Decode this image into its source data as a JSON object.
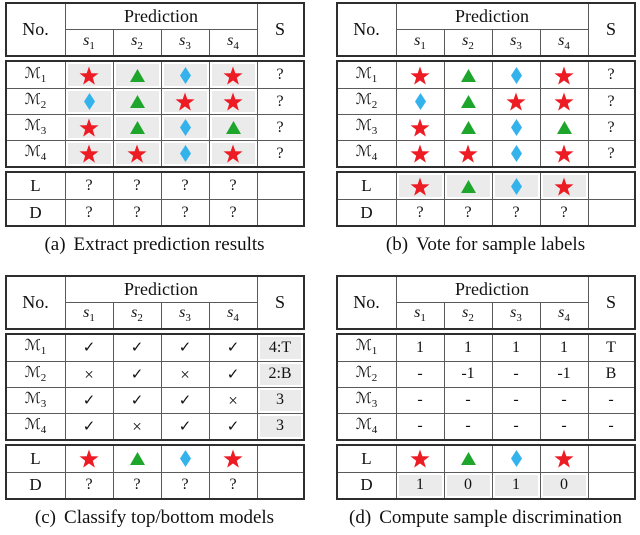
{
  "figure": {
    "colors": {
      "red": "#ed1c24",
      "green": "#1ea62c",
      "blue": "#33b2ec",
      "shade": "#ebebeb",
      "border_outer": "#2e2e2e",
      "border_inner": "#5a5a5a",
      "text": "#111111"
    },
    "header": {
      "no": "No.",
      "prediction": "Prediction",
      "s": "S",
      "samples": [
        {
          "base": "s",
          "sub": "1"
        },
        {
          "base": "s",
          "sub": "2"
        },
        {
          "base": "s",
          "sub": "3"
        },
        {
          "base": "s",
          "sub": "4"
        }
      ]
    },
    "model_glyph": "ℳ",
    "panels": [
      {
        "key": "a",
        "caption": {
          "label": "(a)",
          "text": "Extract prediction results"
        },
        "model_rows": [
          {
            "sub": "1",
            "cells": [
              "star",
              "triangle",
              "diamond",
              "star"
            ],
            "cells_gray": true,
            "s": "?",
            "s_gray": false
          },
          {
            "sub": "2",
            "cells": [
              "diamond",
              "triangle",
              "star",
              "star"
            ],
            "cells_gray": true,
            "s": "?",
            "s_gray": false
          },
          {
            "sub": "3",
            "cells": [
              "star",
              "triangle",
              "diamond",
              "triangle"
            ],
            "cells_gray": true,
            "s": "?",
            "s_gray": false
          },
          {
            "sub": "4",
            "cells": [
              "star",
              "star",
              "diamond",
              "star"
            ],
            "cells_gray": true,
            "s": "?",
            "s_gray": false
          }
        ],
        "bottom_rows": [
          {
            "label": "L",
            "cells": [
              "?",
              "?",
              "?",
              "?"
            ],
            "cells_gray": false,
            "s": ""
          },
          {
            "label": "D",
            "cells": [
              "?",
              "?",
              "?",
              "?"
            ],
            "cells_gray": false,
            "s": ""
          }
        ]
      },
      {
        "key": "b",
        "caption": {
          "label": "(b)",
          "text": "Vote for sample labels"
        },
        "model_rows": [
          {
            "sub": "1",
            "cells": [
              "star",
              "triangle",
              "diamond",
              "star"
            ],
            "cells_gray": false,
            "s": "?",
            "s_gray": false
          },
          {
            "sub": "2",
            "cells": [
              "diamond",
              "triangle",
              "star",
              "star"
            ],
            "cells_gray": false,
            "s": "?",
            "s_gray": false
          },
          {
            "sub": "3",
            "cells": [
              "star",
              "triangle",
              "diamond",
              "triangle"
            ],
            "cells_gray": false,
            "s": "?",
            "s_gray": false
          },
          {
            "sub": "4",
            "cells": [
              "star",
              "star",
              "diamond",
              "star"
            ],
            "cells_gray": false,
            "s": "?",
            "s_gray": false
          }
        ],
        "bottom_rows": [
          {
            "label": "L",
            "cells": [
              "star",
              "triangle",
              "diamond",
              "star"
            ],
            "cells_gray": true,
            "s": ""
          },
          {
            "label": "D",
            "cells": [
              "?",
              "?",
              "?",
              "?"
            ],
            "cells_gray": false,
            "s": ""
          }
        ]
      },
      {
        "key": "c",
        "caption": {
          "label": "(c)",
          "text": "Classify top/bottom models"
        },
        "model_rows": [
          {
            "sub": "1",
            "cells": [
              "check",
              "check",
              "check",
              "check"
            ],
            "cells_gray": false,
            "s": "4:T",
            "s_gray": true
          },
          {
            "sub": "2",
            "cells": [
              "cross",
              "check",
              "cross",
              "check"
            ],
            "cells_gray": false,
            "s": "2:B",
            "s_gray": true
          },
          {
            "sub": "3",
            "cells": [
              "check",
              "check",
              "check",
              "cross"
            ],
            "cells_gray": false,
            "s": "3",
            "s_gray": true
          },
          {
            "sub": "4",
            "cells": [
              "check",
              "cross",
              "check",
              "check"
            ],
            "cells_gray": false,
            "s": "3",
            "s_gray": true
          }
        ],
        "bottom_rows": [
          {
            "label": "L",
            "cells": [
              "star",
              "triangle",
              "diamond",
              "star"
            ],
            "cells_gray": false,
            "s": ""
          },
          {
            "label": "D",
            "cells": [
              "?",
              "?",
              "?",
              "?"
            ],
            "cells_gray": false,
            "s": ""
          }
        ]
      },
      {
        "key": "d",
        "caption": {
          "label": "(d)",
          "text": "Compute sample discrimination"
        },
        "model_rows": [
          {
            "sub": "1",
            "cells": [
              "1",
              "1",
              "1",
              "1"
            ],
            "cells_gray": false,
            "s": "T",
            "s_gray": false
          },
          {
            "sub": "2",
            "cells": [
              "-",
              "-1",
              "-",
              "-1"
            ],
            "cells_gray": false,
            "s": "B",
            "s_gray": false
          },
          {
            "sub": "3",
            "cells": [
              "-",
              "-",
              "-",
              "-"
            ],
            "cells_gray": false,
            "s": "-",
            "s_gray": false
          },
          {
            "sub": "4",
            "cells": [
              "-",
              "-",
              "-",
              "-"
            ],
            "cells_gray": false,
            "s": "-",
            "s_gray": false
          }
        ],
        "bottom_rows": [
          {
            "label": "L",
            "cells": [
              "star",
              "triangle",
              "diamond",
              "star"
            ],
            "cells_gray": false,
            "s": ""
          },
          {
            "label": "D",
            "cells": [
              "1",
              "0",
              "1",
              "0"
            ],
            "cells_gray": true,
            "s": ""
          }
        ]
      }
    ]
  }
}
